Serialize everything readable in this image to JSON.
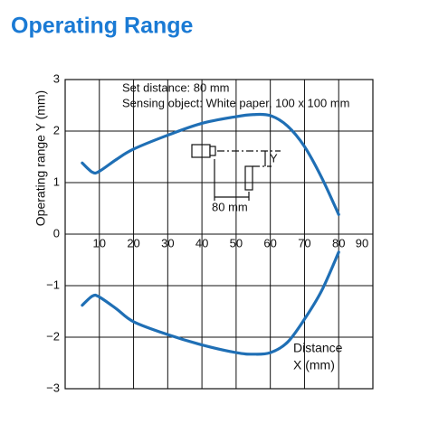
{
  "chart_data": {
    "type": "line",
    "title": "Operating Range",
    "y_label": "Operating range Y (mm)",
    "x_label_lines": [
      "Distance",
      "X (mm)"
    ],
    "annotations": [
      "Set distance: 80 mm",
      "Sensing object: White paper, 100 x 100 mm"
    ],
    "inset_labels": [
      "Y",
      "80 mm"
    ],
    "xlim": [
      0,
      90
    ],
    "xticks": [
      10,
      20,
      30,
      40,
      50,
      60,
      70,
      80,
      90
    ],
    "ylim": [
      -3,
      3
    ],
    "yticks": [
      {
        "value": -3,
        "label": "−3"
      },
      {
        "value": -2,
        "label": "−2"
      },
      {
        "value": -1,
        "label": "−1"
      },
      0,
      1,
      2,
      3
    ],
    "grid": true,
    "x": [
      5,
      8,
      10,
      15,
      20,
      30,
      40,
      50,
      55,
      60,
      65,
      70,
      75,
      80
    ],
    "series": [
      {
        "color": "#1f6fb5",
        "values": [
          1.38,
          1.2,
          1.22,
          1.45,
          1.65,
          1.92,
          2.15,
          2.28,
          2.32,
          2.3,
          2.1,
          1.7,
          1.1,
          0.38
        ]
      },
      {
        "color": "#1f6fb5",
        "values": [
          -1.38,
          -1.2,
          -1.22,
          -1.45,
          -1.7,
          -1.95,
          -2.15,
          -2.3,
          -2.33,
          -2.3,
          -2.1,
          -1.65,
          -1.1,
          -0.35
        ]
      }
    ]
  }
}
